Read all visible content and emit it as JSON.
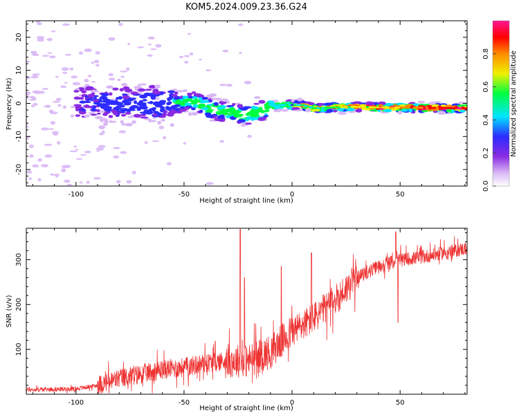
{
  "title": "KOM5.2024.009.23.36.G24",
  "chart_data": [
    {
      "type": "heatmap",
      "xlabel": "Height of straight line (km)",
      "ylabel": "Frequency (Hz)",
      "xlim": [
        -123,
        81
      ],
      "ylim": [
        -25,
        25
      ],
      "xticks": [
        -100,
        -50,
        0,
        50
      ],
      "yticks": [
        -20,
        -10,
        0,
        10,
        20
      ],
      "colorbar": {
        "label": "Normalized spectral amplitude",
        "range": [
          0,
          1
        ],
        "ticks": [
          "0.0",
          "0.2",
          "0.4",
          "0.6",
          "0.8"
        ],
        "colors": [
          "#ffffff",
          "#d9b8f5",
          "#8a2be2",
          "#2c2cff",
          "#00e5ff",
          "#00ff40",
          "#f0f000",
          "#ff8c00",
          "#ff0000",
          "#ff1493"
        ]
      },
      "ridge": [
        {
          "x": -100,
          "y": 0.0
        },
        {
          "x": -80,
          "y": 0.0
        },
        {
          "x": -60,
          "y": 0.0
        },
        {
          "x": -45,
          "y": 0.5
        },
        {
          "x": -38,
          "y": -1.5
        },
        {
          "x": -30,
          "y": -2.5
        },
        {
          "x": -22,
          "y": -3.5
        },
        {
          "x": -15,
          "y": -2.5
        },
        {
          "x": -10,
          "y": -1.0
        },
        {
          "x": -5,
          "y": -0.5
        },
        {
          "x": 0,
          "y": -0.5
        },
        {
          "x": 5,
          "y": -0.5
        },
        {
          "x": 10,
          "y": -1.5
        },
        {
          "x": 20,
          "y": -1.2
        },
        {
          "x": 30,
          "y": -1.0
        },
        {
          "x": 40,
          "y": -1.2
        },
        {
          "x": 50,
          "y": -1.2
        },
        {
          "x": 60,
          "y": -1.3
        },
        {
          "x": 70,
          "y": -1.4
        },
        {
          "x": 81,
          "y": -1.5
        }
      ]
    },
    {
      "type": "line",
      "xlabel": "Height of straight line (km)",
      "ylabel": "SNR (v/v)",
      "xlim": [
        -123,
        81
      ],
      "ylim": [
        0,
        370
      ],
      "xticks": [
        -100,
        -50,
        0,
        50
      ],
      "yticks": [
        100,
        200,
        300
      ],
      "color": "#ee3333",
      "trend": [
        {
          "x": -123,
          "y": 10
        },
        {
          "x": -100,
          "y": 12
        },
        {
          "x": -90,
          "y": 20
        },
        {
          "x": -80,
          "y": 35
        },
        {
          "x": -70,
          "y": 45
        },
        {
          "x": -60,
          "y": 55
        },
        {
          "x": -50,
          "y": 60
        },
        {
          "x": -40,
          "y": 70
        },
        {
          "x": -30,
          "y": 75
        },
        {
          "x": -20,
          "y": 75
        },
        {
          "x": -10,
          "y": 95
        },
        {
          "x": 0,
          "y": 140
        },
        {
          "x": 10,
          "y": 170
        },
        {
          "x": 20,
          "y": 210
        },
        {
          "x": 30,
          "y": 260
        },
        {
          "x": 40,
          "y": 285
        },
        {
          "x": 50,
          "y": 300
        },
        {
          "x": 60,
          "y": 305
        },
        {
          "x": 70,
          "y": 315
        },
        {
          "x": 81,
          "y": 325
        }
      ],
      "peaks": [
        {
          "x": -24,
          "y": 368
        },
        {
          "x": -22,
          "y": 260
        },
        {
          "x": -5,
          "y": 285
        },
        {
          "x": 9,
          "y": 315
        },
        {
          "x": 48,
          "y": 362
        },
        {
          "x": 49,
          "y": 160
        }
      ]
    }
  ]
}
